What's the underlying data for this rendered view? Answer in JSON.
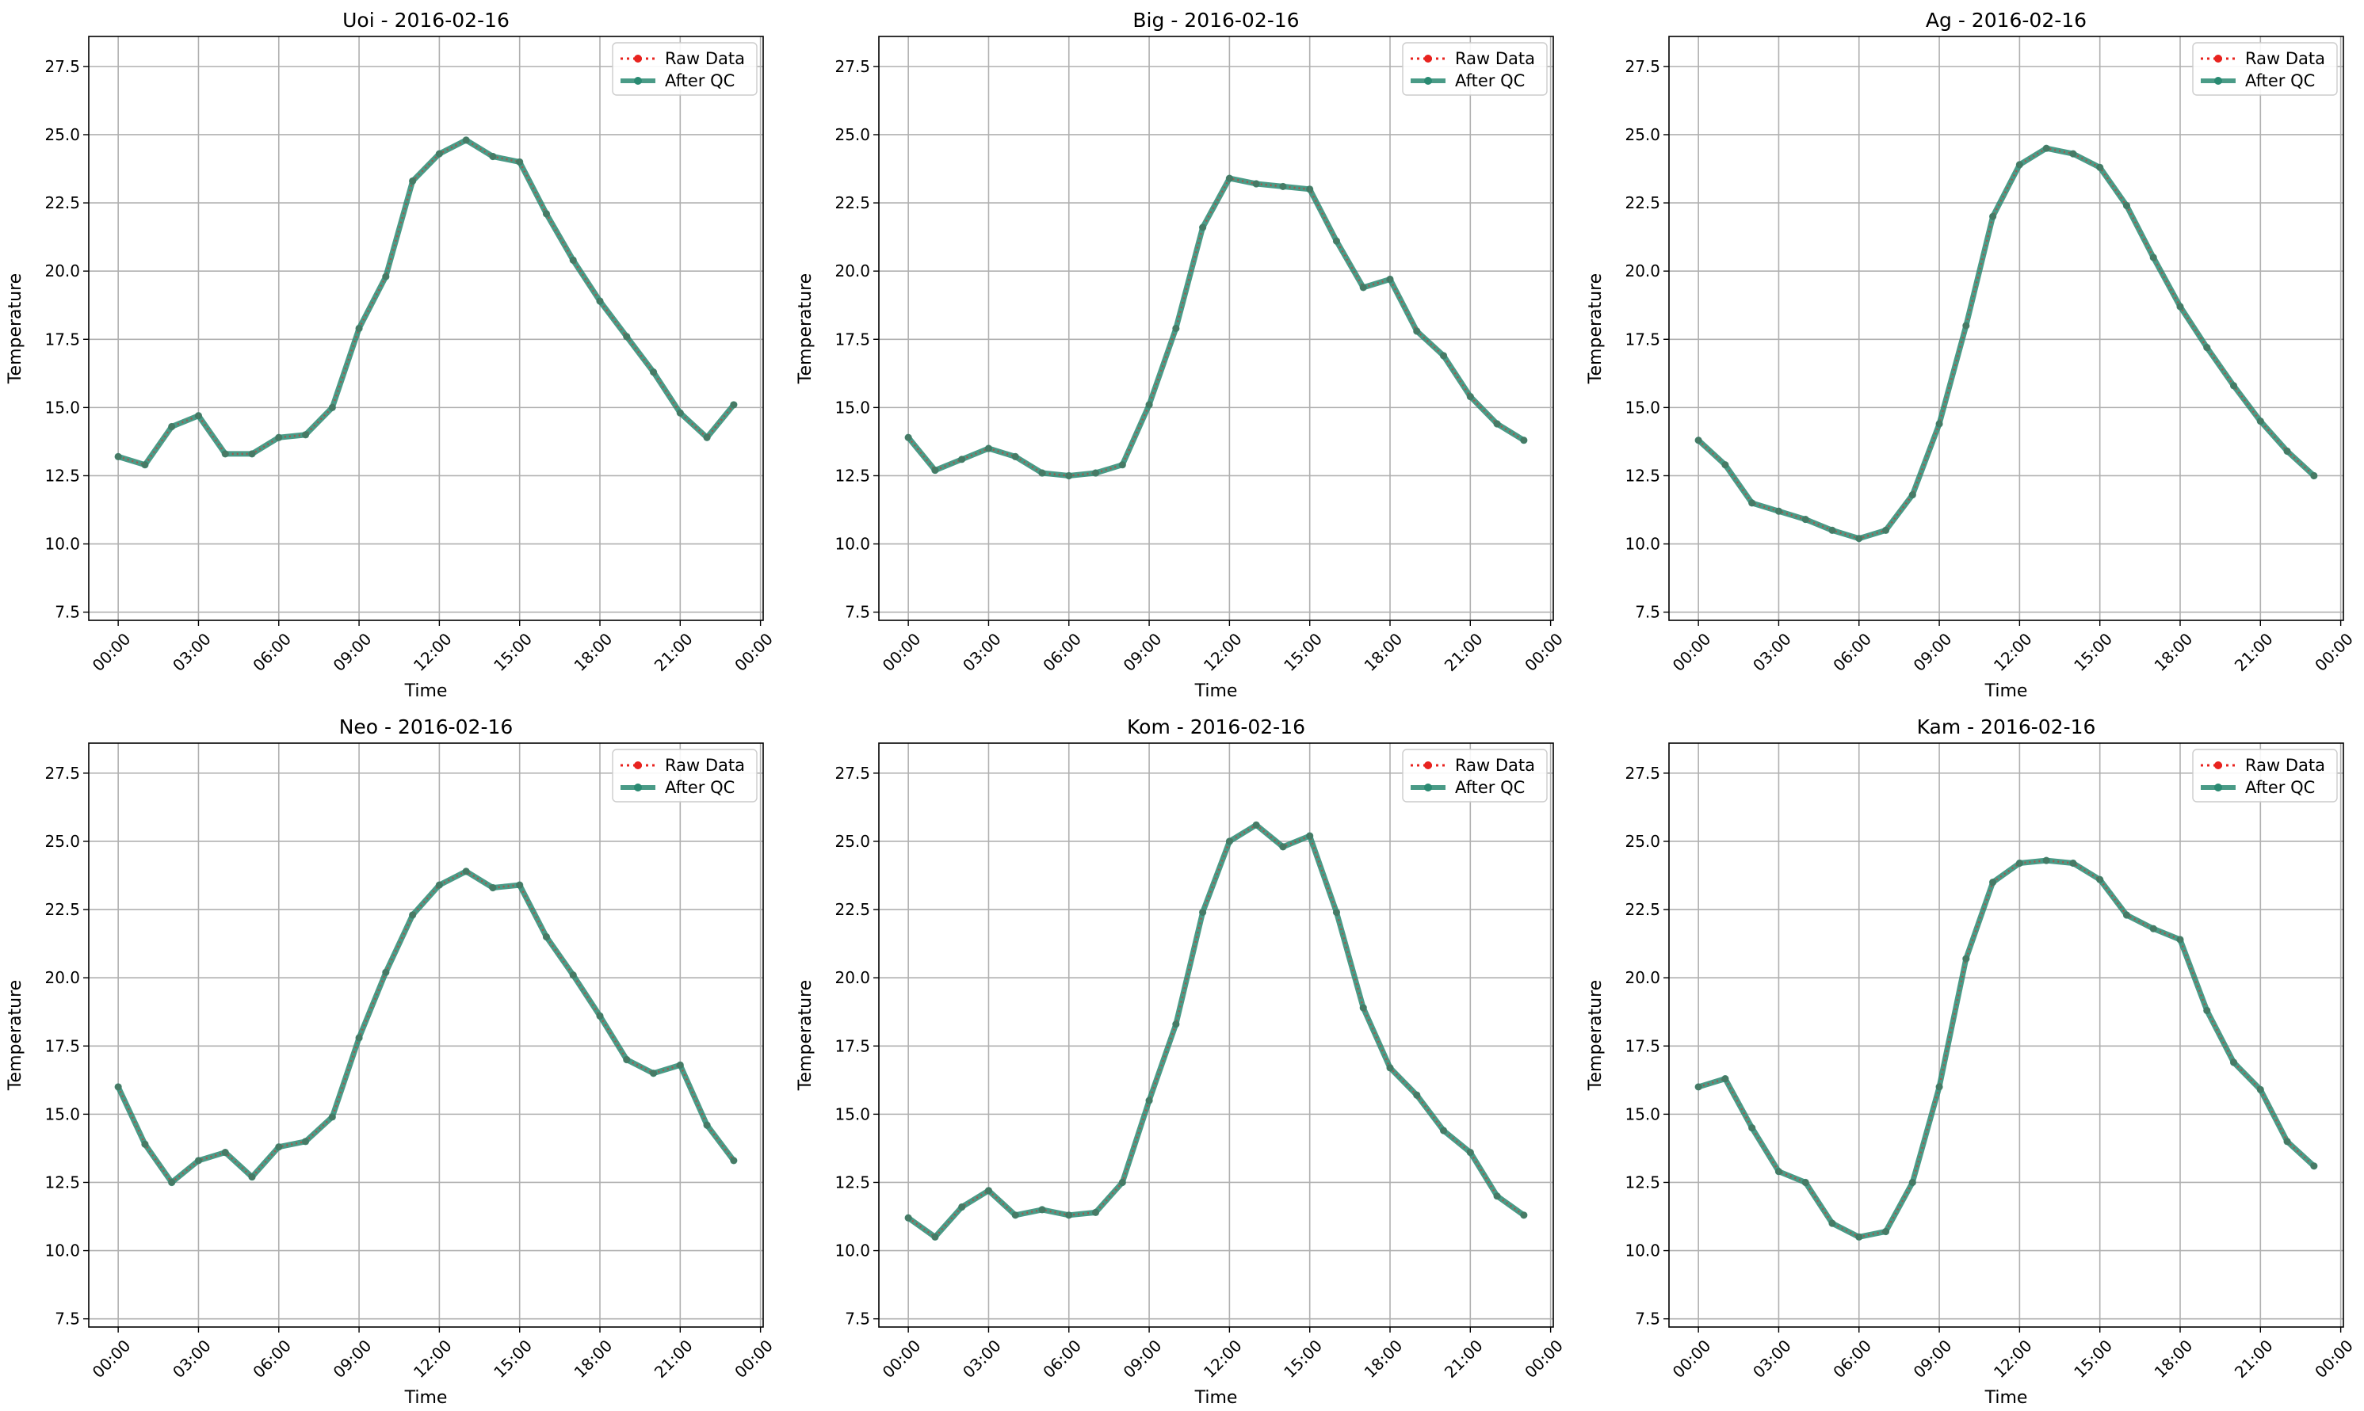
{
  "chart_data": [
    {
      "type": "line",
      "title": "Uoi - 2016-02-16",
      "xlabel": "Time",
      "ylabel": "Temperature",
      "x_hours": [
        0,
        1,
        2,
        3,
        4,
        5,
        6,
        7,
        8,
        9,
        10,
        11,
        12,
        13,
        14,
        15,
        16,
        17,
        18,
        19,
        20,
        21,
        22,
        23
      ],
      "series": [
        {
          "name": "Raw Data",
          "values": [
            13.2,
            12.9,
            14.3,
            14.7,
            13.3,
            13.3,
            13.9,
            14.0,
            15.0,
            17.9,
            19.8,
            23.3,
            24.3,
            24.8,
            24.2,
            24.0,
            22.1,
            20.4,
            18.9,
            17.6,
            16.3,
            14.8,
            13.9,
            15.1
          ]
        },
        {
          "name": "After QC",
          "values": [
            13.2,
            12.9,
            14.3,
            14.7,
            13.3,
            13.3,
            13.9,
            14.0,
            15.0,
            17.9,
            19.8,
            23.3,
            24.3,
            24.8,
            24.2,
            24.0,
            22.1,
            20.4,
            18.9,
            17.6,
            16.3,
            14.8,
            13.9,
            15.1
          ]
        }
      ],
      "ylim": [
        7.2,
        28.6
      ],
      "yticks": [
        "7.5",
        "10.0",
        "12.5",
        "15.0",
        "17.5",
        "20.0",
        "22.5",
        "25.0",
        "27.5"
      ],
      "xticks": [
        "00:00",
        "03:00",
        "06:00",
        "09:00",
        "12:00",
        "15:00",
        "18:00",
        "21:00",
        "00:00"
      ],
      "grid": true,
      "legend": "upper right"
    },
    {
      "type": "line",
      "title": "Big - 2016-02-16",
      "xlabel": "Time",
      "ylabel": "Temperature",
      "x_hours": [
        0,
        1,
        2,
        3,
        4,
        5,
        6,
        7,
        8,
        9,
        10,
        11,
        12,
        13,
        14,
        15,
        16,
        17,
        18,
        19,
        20,
        21,
        22,
        23
      ],
      "series": [
        {
          "name": "Raw Data",
          "values": [
            13.9,
            12.7,
            13.1,
            13.5,
            13.2,
            12.6,
            12.5,
            12.6,
            12.9,
            15.1,
            17.9,
            21.6,
            23.4,
            23.2,
            23.1,
            23.0,
            21.1,
            19.4,
            19.7,
            17.8,
            16.9,
            15.4,
            14.4,
            13.8
          ]
        },
        {
          "name": "After QC",
          "values": [
            13.9,
            12.7,
            13.1,
            13.5,
            13.2,
            12.6,
            12.5,
            12.6,
            12.9,
            15.1,
            17.9,
            21.6,
            23.4,
            23.2,
            23.1,
            23.0,
            21.1,
            19.4,
            19.7,
            17.8,
            16.9,
            15.4,
            14.4,
            13.8
          ]
        }
      ],
      "ylim": [
        7.2,
        28.6
      ],
      "yticks": [
        "7.5",
        "10.0",
        "12.5",
        "15.0",
        "17.5",
        "20.0",
        "22.5",
        "25.0",
        "27.5"
      ],
      "xticks": [
        "00:00",
        "03:00",
        "06:00",
        "09:00",
        "12:00",
        "15:00",
        "18:00",
        "21:00",
        "00:00"
      ],
      "grid": true,
      "legend": "upper right"
    },
    {
      "type": "line",
      "title": "Ag - 2016-02-16",
      "xlabel": "Time",
      "ylabel": "Temperature",
      "x_hours": [
        0,
        1,
        2,
        3,
        4,
        5,
        6,
        7,
        8,
        9,
        10,
        11,
        12,
        13,
        14,
        15,
        16,
        17,
        18,
        19,
        20,
        21,
        22,
        23
      ],
      "series": [
        {
          "name": "Raw Data",
          "values": [
            13.8,
            12.9,
            11.5,
            11.2,
            10.9,
            10.5,
            10.2,
            10.5,
            11.8,
            14.4,
            18.0,
            22.0,
            23.9,
            24.5,
            24.3,
            23.8,
            22.4,
            20.5,
            18.7,
            17.2,
            15.8,
            14.5,
            13.4,
            12.5
          ]
        },
        {
          "name": "After QC",
          "values": [
            13.8,
            12.9,
            11.5,
            11.2,
            10.9,
            10.5,
            10.2,
            10.5,
            11.8,
            14.4,
            18.0,
            22.0,
            23.9,
            24.5,
            24.3,
            23.8,
            22.4,
            20.5,
            18.7,
            17.2,
            15.8,
            14.5,
            13.4,
            12.5
          ]
        }
      ],
      "ylim": [
        7.2,
        28.6
      ],
      "yticks": [
        "7.5",
        "10.0",
        "12.5",
        "15.0",
        "17.5",
        "20.0",
        "22.5",
        "25.0",
        "27.5"
      ],
      "xticks": [
        "00:00",
        "03:00",
        "06:00",
        "09:00",
        "12:00",
        "15:00",
        "18:00",
        "21:00",
        "00:00"
      ],
      "grid": true,
      "legend": "upper right"
    },
    {
      "type": "line",
      "title": "Neo - 2016-02-16",
      "xlabel": "Time",
      "ylabel": "Temperature",
      "x_hours": [
        0,
        1,
        2,
        3,
        4,
        5,
        6,
        7,
        8,
        9,
        10,
        11,
        12,
        13,
        14,
        15,
        16,
        17,
        18,
        19,
        20,
        21,
        22,
        23
      ],
      "series": [
        {
          "name": "Raw Data",
          "values": [
            16.0,
            13.9,
            12.5,
            13.3,
            13.6,
            12.7,
            13.8,
            14.0,
            14.9,
            17.8,
            20.2,
            22.3,
            23.4,
            23.9,
            23.3,
            23.4,
            21.5,
            20.1,
            18.6,
            17.0,
            16.5,
            16.8,
            14.6,
            13.3
          ]
        },
        {
          "name": "After QC",
          "values": [
            16.0,
            13.9,
            12.5,
            13.3,
            13.6,
            12.7,
            13.8,
            14.0,
            14.9,
            17.8,
            20.2,
            22.3,
            23.4,
            23.9,
            23.3,
            23.4,
            21.5,
            20.1,
            18.6,
            17.0,
            16.5,
            16.8,
            14.6,
            13.3
          ]
        }
      ],
      "ylim": [
        7.2,
        28.6
      ],
      "yticks": [
        "7.5",
        "10.0",
        "12.5",
        "15.0",
        "17.5",
        "20.0",
        "22.5",
        "25.0",
        "27.5"
      ],
      "xticks": [
        "00:00",
        "03:00",
        "06:00",
        "09:00",
        "12:00",
        "15:00",
        "18:00",
        "21:00",
        "00:00"
      ],
      "grid": true,
      "legend": "upper right"
    },
    {
      "type": "line",
      "title": "Kom - 2016-02-16",
      "xlabel": "Time",
      "ylabel": "Temperature",
      "x_hours": [
        0,
        1,
        2,
        3,
        4,
        5,
        6,
        7,
        8,
        9,
        10,
        11,
        12,
        13,
        14,
        15,
        16,
        17,
        18,
        19,
        20,
        21,
        22,
        23
      ],
      "series": [
        {
          "name": "Raw Data",
          "values": [
            11.2,
            10.5,
            11.6,
            12.2,
            11.3,
            11.5,
            11.3,
            11.4,
            12.5,
            15.5,
            18.3,
            22.4,
            25.0,
            25.6,
            24.8,
            25.2,
            22.4,
            18.9,
            16.7,
            15.7,
            14.4,
            13.6,
            12.0,
            11.3
          ]
        },
        {
          "name": "After QC",
          "values": [
            11.2,
            10.5,
            11.6,
            12.2,
            11.3,
            11.5,
            11.3,
            11.4,
            12.5,
            15.5,
            18.3,
            22.4,
            25.0,
            25.6,
            24.8,
            25.2,
            22.4,
            18.9,
            16.7,
            15.7,
            14.4,
            13.6,
            12.0,
            11.3
          ]
        }
      ],
      "ylim": [
        7.2,
        28.6
      ],
      "yticks": [
        "7.5",
        "10.0",
        "12.5",
        "15.0",
        "17.5",
        "20.0",
        "22.5",
        "25.0",
        "27.5"
      ],
      "xticks": [
        "00:00",
        "03:00",
        "06:00",
        "09:00",
        "12:00",
        "15:00",
        "18:00",
        "21:00",
        "00:00"
      ],
      "grid": true,
      "legend": "upper right"
    },
    {
      "type": "line",
      "title": "Kam - 2016-02-16",
      "xlabel": "Time",
      "ylabel": "Temperature",
      "x_hours": [
        0,
        1,
        2,
        3,
        4,
        5,
        6,
        7,
        8,
        9,
        10,
        11,
        12,
        13,
        14,
        15,
        16,
        17,
        18,
        19,
        20,
        21,
        22,
        23
      ],
      "series": [
        {
          "name": "Raw Data",
          "values": [
            16.0,
            16.3,
            14.5,
            12.9,
            12.5,
            11.0,
            10.5,
            10.7,
            12.5,
            16.0,
            20.7,
            23.5,
            24.2,
            24.3,
            24.2,
            23.6,
            22.3,
            21.8,
            21.4,
            18.8,
            16.9,
            15.9,
            14.0,
            13.1
          ]
        },
        {
          "name": "After QC",
          "values": [
            16.0,
            16.3,
            14.5,
            12.9,
            12.5,
            11.0,
            10.5,
            10.7,
            12.5,
            16.0,
            20.7,
            23.5,
            24.2,
            24.3,
            24.2,
            23.6,
            22.3,
            21.8,
            21.4,
            18.8,
            16.9,
            15.9,
            14.0,
            13.1
          ]
        }
      ],
      "ylim": [
        7.2,
        28.6
      ],
      "yticks": [
        "7.5",
        "10.0",
        "12.5",
        "15.0",
        "17.5",
        "20.0",
        "22.5",
        "25.0",
        "27.5"
      ],
      "xticks": [
        "00:00",
        "03:00",
        "06:00",
        "09:00",
        "12:00",
        "15:00",
        "18:00",
        "21:00",
        "00:00"
      ],
      "grid": true,
      "legend": "upper right"
    }
  ],
  "colors": {
    "raw": "#e8231f",
    "qc": "#2a8a72",
    "grid": "#b0b0b0",
    "frame": "#000000",
    "legend_border": "#cccccc"
  }
}
